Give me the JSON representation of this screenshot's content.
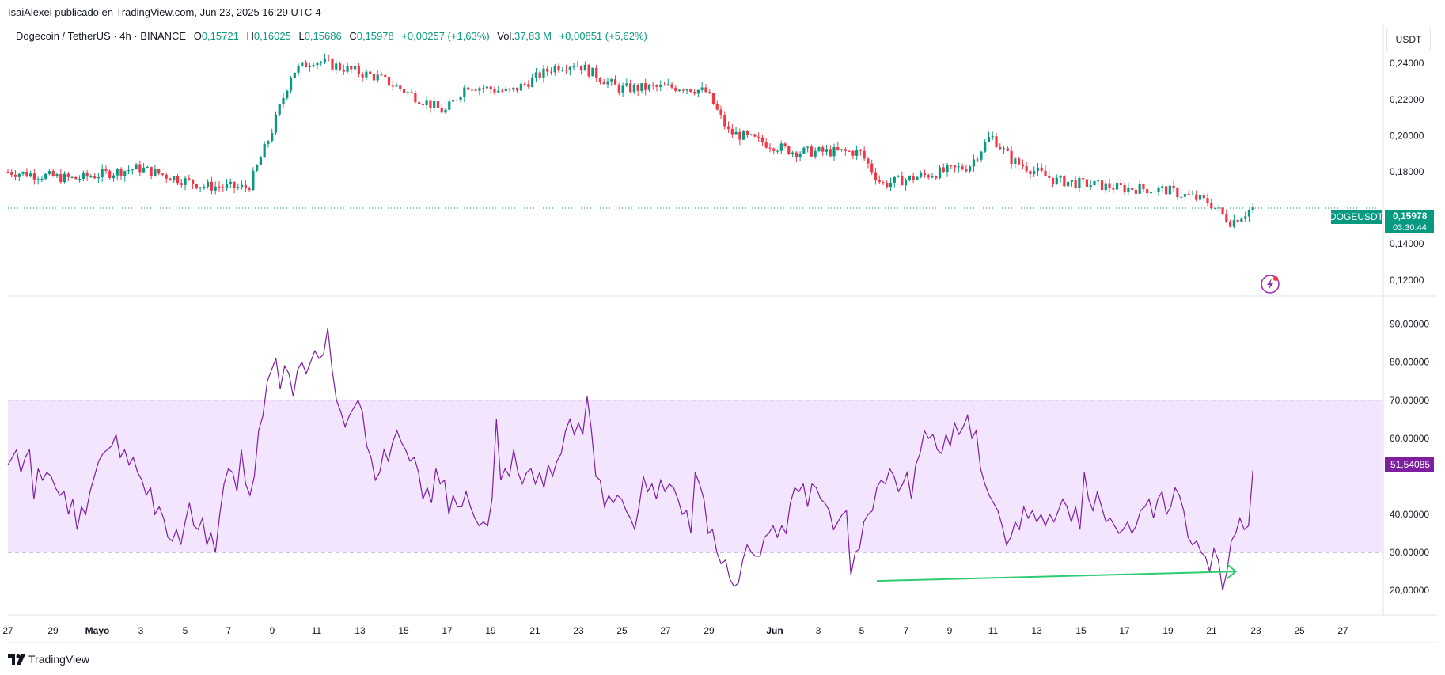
{
  "header": {
    "publisher_line": "IsaiAlexei publicado en TradingView.com, Jun 23, 2025 16:29 UTC-4",
    "symbol_desc": "Dogecoin / TetherUS · 4h · BINANCE",
    "o_label": "O",
    "o_value": "0,15721",
    "h_label": "H",
    "h_value": "0,16025",
    "l_label": "L",
    "l_value": "0,15686",
    "c_label": "C",
    "c_value": "0,15978",
    "change": "+0,00257 (+1,63%)",
    "vol_label": "Vol.",
    "vol_value": "37,83 M",
    "vol_change": "+0,00851 (+5,62%)",
    "currency_button": "USDT"
  },
  "footer": {
    "brand": "TradingView"
  },
  "colors": {
    "up": "#089981",
    "down": "#f23645",
    "rsi_line": "#7e1fa0",
    "rsi_band": "#f3e5fd",
    "arrow": "#2ecc71",
    "badge_price": "#089981",
    "badge_rsi": "#7e1fa0"
  },
  "chart_data": [
    {
      "type": "candlestick",
      "title": "",
      "price_axis_ticks": [
        "0,24000",
        "0,22000",
        "0,20000",
        "0,18000",
        "0,14000",
        "0,12000"
      ],
      "price_axis_values": [
        0.24,
        0.22,
        0.2,
        0.18,
        0.14,
        0.12
      ],
      "ylim": [
        0.112,
        0.262
      ],
      "last_price_label": "DOGEUSDT",
      "last_price": "0,15978",
      "countdown": "03:30:44",
      "x_tick_labels": [
        "27",
        "29",
        "Mayo",
        "3",
        "5",
        "7",
        "9",
        "11",
        "13",
        "15",
        "17",
        "19",
        "21",
        "23",
        "25",
        "27",
        "29",
        "Jun",
        "3",
        "5",
        "7",
        "9",
        "11",
        "13",
        "15",
        "17",
        "19",
        "21",
        "23",
        "25",
        "27"
      ],
      "close_path_dates": [
        "Apr 27",
        "Apr 30",
        "May 3",
        "May 6",
        "May 8",
        "May 9",
        "May 10",
        "May 11",
        "May 14",
        "May 17",
        "May 18",
        "May 20",
        "May 22",
        "May 23",
        "May 25",
        "May 28",
        "May 29",
        "May 30",
        "Jun 2",
        "Jun 5",
        "Jun 6",
        "Jun 10",
        "Jun 11",
        "Jun 12",
        "Jun 14",
        "Jun 17",
        "Jun 19",
        "Jun 21",
        "Jun 22",
        "Jun 23"
      ],
      "close_path_values": [
        0.18,
        0.176,
        0.182,
        0.172,
        0.171,
        0.2,
        0.235,
        0.242,
        0.232,
        0.213,
        0.228,
        0.224,
        0.238,
        0.24,
        0.226,
        0.227,
        0.224,
        0.202,
        0.191,
        0.191,
        0.173,
        0.183,
        0.2,
        0.186,
        0.175,
        0.171,
        0.17,
        0.163,
        0.152,
        0.15978
      ]
    },
    {
      "type": "line",
      "title": "",
      "axis_ticks": [
        "90,00000",
        "80,00000",
        "70,00000",
        "60,00000",
        "40,00000",
        "30,00000",
        "20,00000"
      ],
      "axis_values": [
        90,
        80,
        70,
        60,
        40,
        30,
        20
      ],
      "ylim": [
        14,
        97
      ],
      "band": [
        30,
        70
      ],
      "last_value": "51,54085",
      "series_values": [
        53,
        55,
        57,
        51,
        55,
        57,
        44,
        52,
        49,
        51,
        50,
        47,
        45,
        46,
        40,
        44,
        36,
        42,
        40,
        46,
        50,
        54,
        56,
        57,
        58,
        61,
        55,
        57,
        53,
        55,
        51,
        49,
        45,
        47,
        40,
        42,
        39,
        34,
        33,
        36,
        32,
        38,
        43,
        37,
        36,
        39,
        32,
        35,
        30,
        40,
        48,
        52,
        51,
        46,
        57,
        48,
        45,
        50,
        62,
        66,
        75,
        78,
        81,
        73,
        79,
        77,
        71,
        78,
        80,
        77,
        80,
        83,
        81,
        82,
        89,
        78,
        70,
        67,
        63,
        66,
        68,
        70,
        67,
        58,
        55,
        49,
        51,
        57,
        54,
        59,
        62,
        59,
        57,
        54,
        55,
        51,
        44,
        47,
        43,
        52,
        48,
        49,
        40,
        45,
        42,
        42,
        46,
        42,
        39,
        37,
        38,
        37,
        44,
        65,
        49,
        52,
        50,
        57,
        51,
        48,
        51,
        52,
        48,
        51,
        47,
        53,
        50,
        54,
        56,
        62,
        65,
        61,
        64,
        61,
        71,
        62,
        50,
        49,
        42,
        45,
        43,
        45,
        44,
        41,
        39,
        36,
        42,
        50,
        46,
        48,
        44,
        49,
        46,
        48,
        47,
        44,
        40,
        41,
        35,
        51,
        48,
        44,
        35,
        36,
        30,
        27,
        28,
        23,
        21,
        22,
        28,
        32,
        30,
        29,
        29,
        34,
        35,
        37,
        34,
        37,
        35,
        43,
        47,
        46,
        48,
        42,
        48,
        47,
        44,
        43,
        41,
        36,
        38,
        40,
        41,
        24,
        30,
        31,
        38,
        40,
        41,
        47,
        49,
        48,
        52,
        50,
        46,
        48,
        51,
        44,
        53,
        56,
        62,
        60,
        61,
        57,
        56,
        61,
        58,
        64,
        61,
        63,
        66,
        60,
        62,
        52,
        48,
        45,
        43,
        41,
        37,
        32,
        34,
        38,
        36,
        42,
        39,
        41,
        38,
        40,
        37,
        40,
        38,
        41,
        44,
        42,
        38,
        42,
        36,
        51,
        44,
        41,
        46,
        42,
        38,
        39,
        37,
        35,
        36,
        38,
        35,
        37,
        41,
        42,
        44,
        39,
        44,
        46,
        40,
        42,
        47,
        45,
        41,
        34,
        32,
        33,
        30,
        29,
        25,
        31,
        28,
        20,
        25,
        33,
        35,
        39,
        36,
        37,
        51.54
      ],
      "annotation": "green arrow from RSI low near Jun 6 to RSI low near Jun 22"
    }
  ]
}
